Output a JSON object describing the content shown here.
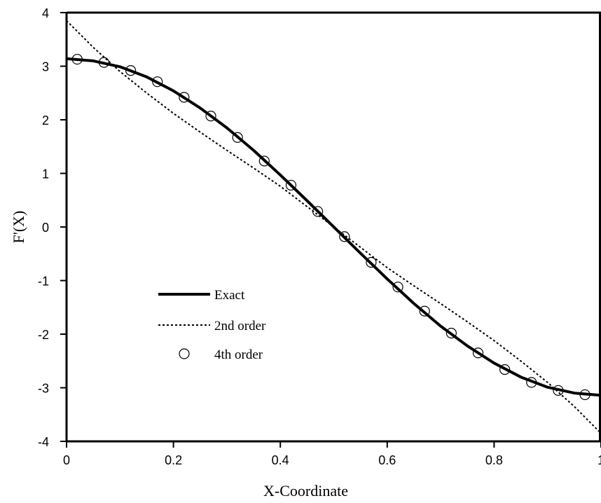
{
  "chart_data": {
    "type": "line",
    "xlabel": "X-Coordinate",
    "ylabel": "F'(X)",
    "xlim": [
      0,
      1
    ],
    "ylim": [
      -4,
      4
    ],
    "x_ticks": [
      0,
      0.2,
      0.4,
      0.6,
      0.8,
      1
    ],
    "x_tick_labels": [
      "0",
      "0.2",
      "0.4",
      "0.6",
      "0.8",
      "1"
    ],
    "y_ticks": [
      -4,
      -3,
      -2,
      -1,
      0,
      1,
      2,
      3,
      4
    ],
    "y_tick_labels": [
      "-4",
      "-3",
      "-2",
      "-1",
      "0",
      "1",
      "2",
      "3",
      "4"
    ],
    "grid": false,
    "legend_position": "lower-left",
    "series": [
      {
        "name": "Exact",
        "style": "solid-thick",
        "x": [
          0,
          0.05,
          0.1,
          0.15,
          0.2,
          0.25,
          0.3,
          0.35,
          0.4,
          0.45,
          0.5,
          0.55,
          0.6,
          0.65,
          0.7,
          0.75,
          0.8,
          0.85,
          0.9,
          0.95,
          1
        ],
        "y": [
          3.14,
          3.1,
          2.99,
          2.8,
          2.54,
          2.22,
          1.85,
          1.43,
          0.97,
          0.49,
          0.0,
          -0.49,
          -0.97,
          -1.43,
          -1.85,
          -2.22,
          -2.54,
          -2.8,
          -2.99,
          -3.1,
          -3.14
        ]
      },
      {
        "name": "2nd order",
        "style": "dotted",
        "x": [
          0,
          0.05,
          0.1,
          0.15,
          0.2,
          0.25,
          0.3,
          0.35,
          0.4,
          0.45,
          0.5,
          0.55,
          0.6,
          0.65,
          0.7,
          0.75,
          0.8,
          0.85,
          0.9,
          0.95,
          1
        ],
        "y": [
          3.85,
          3.35,
          2.9,
          2.5,
          2.12,
          1.77,
          1.43,
          1.1,
          0.76,
          0.38,
          0.0,
          -0.38,
          -0.76,
          -1.1,
          -1.43,
          -1.77,
          -2.12,
          -2.5,
          -2.9,
          -3.35,
          -3.85
        ]
      },
      {
        "name": "4th order",
        "style": "open-circle-markers",
        "x": [
          0.02,
          0.07,
          0.12,
          0.17,
          0.22,
          0.27,
          0.32,
          0.37,
          0.42,
          0.47,
          0.52,
          0.57,
          0.62,
          0.67,
          0.72,
          0.77,
          0.82,
          0.87,
          0.92,
          0.97
        ],
        "y": [
          3.13,
          3.07,
          2.92,
          2.71,
          2.42,
          2.07,
          1.67,
          1.23,
          0.78,
          0.29,
          -0.18,
          -0.66,
          -1.12,
          -1.57,
          -1.98,
          -2.35,
          -2.66,
          -2.9,
          -3.05,
          -3.13
        ]
      }
    ]
  }
}
